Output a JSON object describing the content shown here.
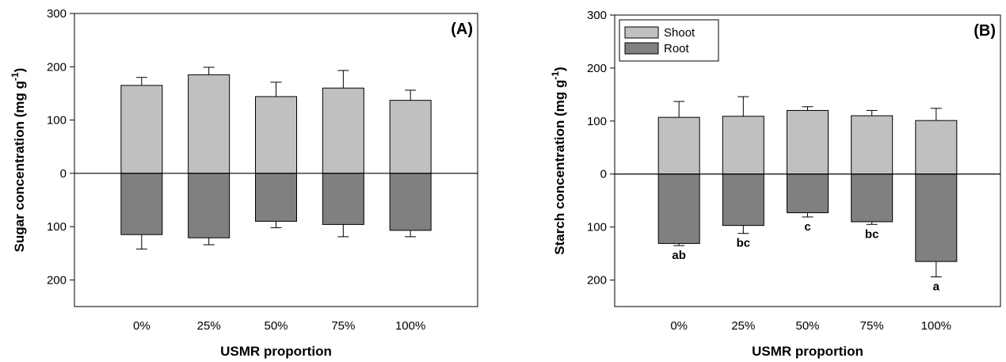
{
  "chart_data": [
    {
      "type": "bar",
      "panel_label": "(A)",
      "xlabel": "USMR proportion",
      "ylabel": "Sugar concentration (mg g",
      "ylabel_sup": "-1",
      "ylabel_end": ")",
      "categories": [
        "0%",
        "25%",
        "50%",
        "75%",
        "100%"
      ],
      "ylim": [
        -250,
        300
      ],
      "yticks": [
        300,
        200,
        100,
        0,
        -100,
        -200
      ],
      "ytick_labels": [
        "300",
        "200",
        "100",
        "0",
        "100",
        "200"
      ],
      "legend": null,
      "series": [
        {
          "name": "Shoot",
          "color": "#c0c0c0",
          "values": [
            165,
            185,
            144,
            160,
            137
          ],
          "errors": [
            15,
            14,
            27,
            33,
            19
          ]
        },
        {
          "name": "Root",
          "color": "#808080",
          "values": [
            -115,
            -121,
            -90,
            -96,
            -107
          ],
          "errors": [
            27,
            13,
            12,
            23,
            12
          ]
        }
      ],
      "annotations": []
    },
    {
      "type": "bar",
      "panel_label": "(B)",
      "xlabel": "USMR proportion",
      "ylabel": "Starch concentration (mg g",
      "ylabel_sup": "-1",
      "ylabel_end": ")",
      "categories": [
        "0%",
        "25%",
        "50%",
        "75%",
        "100%"
      ],
      "ylim": [
        -250,
        300
      ],
      "yticks": [
        300,
        200,
        100,
        0,
        -100,
        -200
      ],
      "ytick_labels": [
        "300",
        "200",
        "100",
        "0",
        "100",
        "200"
      ],
      "legend": {
        "placement": "top-left",
        "entries": [
          "Shoot",
          "Root"
        ]
      },
      "series": [
        {
          "name": "Shoot",
          "color": "#c0c0c0",
          "values": [
            107,
            109,
            120,
            110,
            101
          ],
          "errors": [
            30,
            37,
            7,
            10,
            23
          ]
        },
        {
          "name": "Root",
          "color": "#808080",
          "values": [
            -131,
            -97,
            -73,
            -90,
            -165
          ],
          "errors": [
            4,
            15,
            8,
            5,
            29
          ]
        }
      ],
      "annotations": [
        "ab",
        "bc",
        "c",
        "bc",
        "a"
      ]
    }
  ]
}
